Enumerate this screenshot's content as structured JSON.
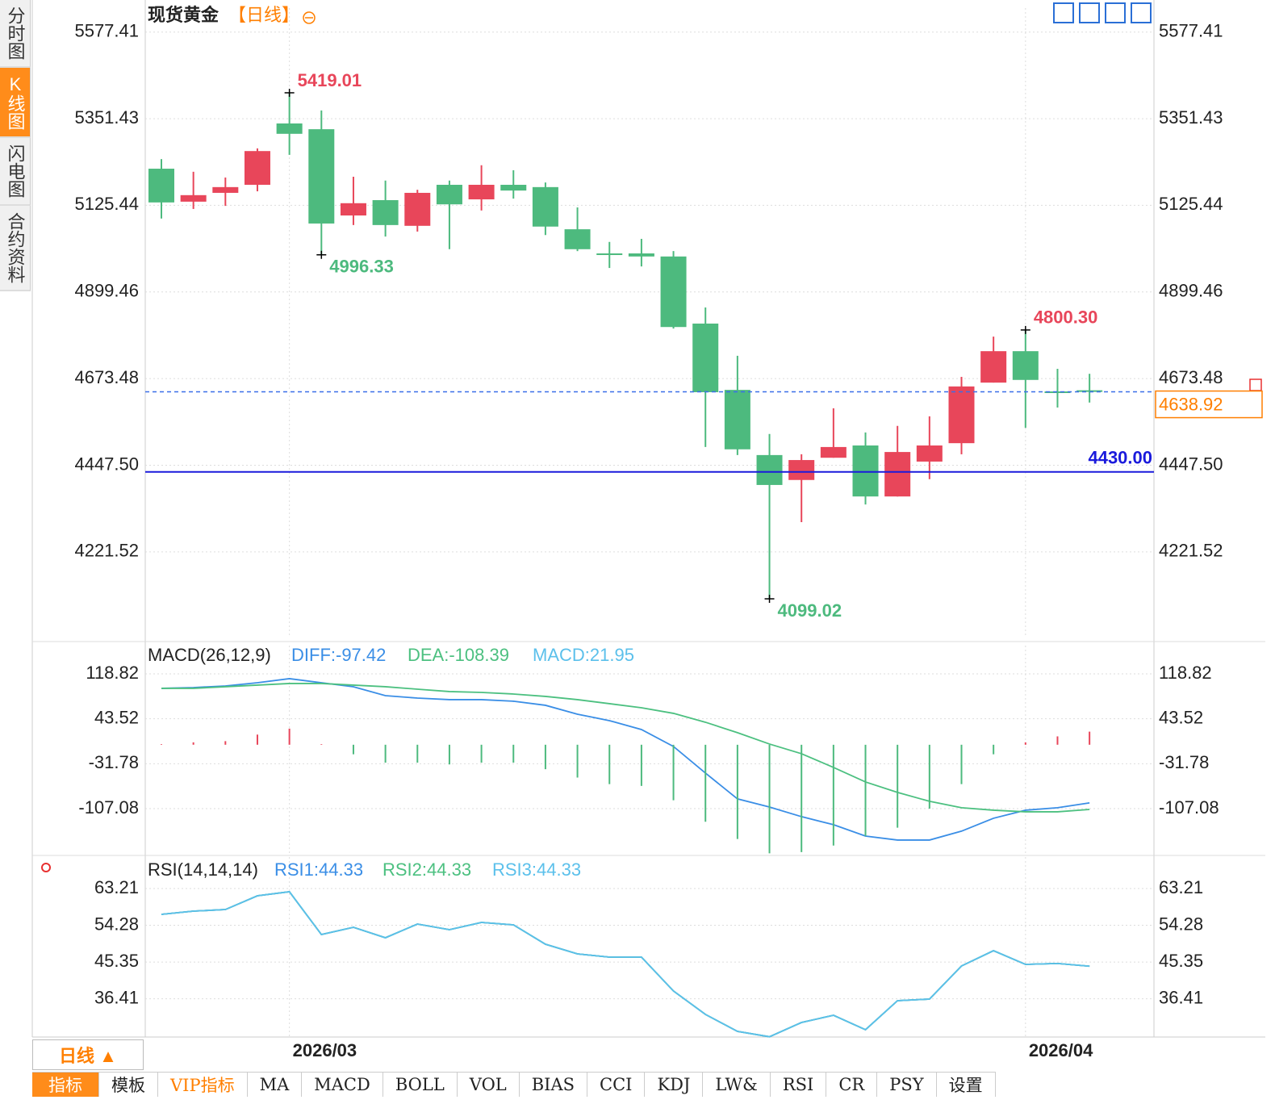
{
  "sidebar_tabs": [
    "分时图",
    "K线图",
    "闪电图",
    "合约资料"
  ],
  "period_button": "日线 ▲",
  "toolbar_tabs": [
    "指标",
    "模板",
    "VIP指标",
    "MA",
    "MACD",
    "BOLL",
    "VOL",
    "BIAS",
    "CCI",
    "KDJ",
    "LW&",
    "RSI",
    "CR",
    "PSY",
    "设置"
  ],
  "chart_data": [
    {
      "type": "candlestick",
      "title": "现货黄金",
      "subtitle": "【日线】",
      "categories": [
        null,
        null,
        null,
        null,
        "2026/03",
        null,
        null,
        null,
        null,
        null,
        null,
        null,
        null,
        null,
        null,
        null,
        null,
        null,
        null,
        null,
        null,
        null,
        null,
        null,
        null,
        null,
        null,
        "2026/04",
        null,
        null
      ],
      "open": [
        5221,
        5135,
        5158,
        5179,
        5339,
        5324,
        5099,
        5139,
        5072,
        5179,
        5141,
        5179,
        5173,
        5063,
        5000,
        5000,
        4992,
        4817,
        4644,
        4474,
        4409,
        4467,
        4499,
        4366,
        4457,
        4505,
        4663,
        4745,
        4640,
        4643
      ],
      "high": [
        5246,
        5213,
        5198,
        5274,
        5419.01,
        5373,
        5200,
        5190,
        5166,
        5190,
        5230,
        5217,
        5185,
        5120,
        5030,
        5038,
        5006,
        4859,
        4733,
        4529,
        4476,
        4596,
        4533,
        4550,
        4575,
        4678,
        4783,
        4800.3,
        4699,
        4686
      ],
      "low": [
        5091,
        5116,
        5124,
        5162,
        5257,
        4996.33,
        5074,
        5044,
        5057,
        5011,
        5112,
        5143,
        5048,
        5006,
        4962,
        4966,
        4804,
        4495,
        4474,
        4099.02,
        4299,
        4467,
        4345,
        4366,
        4411,
        4476,
        4663,
        4545,
        4598,
        4611
      ],
      "close": [
        5133,
        5152,
        5173,
        5267,
        5312,
        5078,
        5131,
        5074,
        5158,
        5128,
        5179,
        5164,
        5070,
        5011,
        4996,
        4992,
        4808,
        4638,
        4489,
        4396,
        4461,
        4495,
        4366,
        4482,
        4499,
        4653,
        4745,
        4670,
        4636,
        4638.92
      ],
      "up_color": "#e8465a",
      "down_color": "#4dba7e",
      "annotations": [
        5419.01,
        4996.33,
        4099.02,
        {
          "value": 4800.3,
          "label": "4800.30"
        }
      ],
      "last_price": 4638.92,
      "support_line": {
        "value": 4430,
        "label": "4430.00"
      },
      "ylim": [
        3998,
        5640
      ],
      "yticks": [
        5577.41,
        5351.43,
        5125.44,
        4899.46,
        4673.48,
        {
          "value": 4447.5,
          "label": "4447.50"
        },
        4221.52
      ],
      "grid": true
    },
    {
      "type": "line",
      "title": "MACD(26,12,9)",
      "series": [
        {
          "name": "DIFF:-97.42",
          "color": "#3a8ee6",
          "values": [
            94.5,
            95.8,
            98.5,
            103.9,
            110.7,
            103.9,
            97.2,
            82.3,
            78.2,
            75.6,
            75.6,
            72.9,
            66.1,
            51.2,
            40.4,
            25.5,
            -2.9,
            -47.5,
            -90.7,
            -104.3,
            -120.5,
            -134.0,
            -153.0,
            -159.7,
            -159.7,
            -144.8,
            -123.2,
            -109.7,
            -105.6,
            -97.42
          ]
        },
        {
          "name": "DEA:-108.39",
          "color": "#4cc080",
          "values": [
            94.5,
            94.5,
            97.2,
            99.9,
            102.6,
            102.6,
            99.9,
            97.2,
            93.1,
            89.1,
            87.7,
            85.0,
            81.0,
            75.6,
            68.8,
            62.0,
            52.6,
            37.7,
            20.2,
            1.2,
            -15.0,
            -38.0,
            -62.4,
            -79.9,
            -94.8,
            -105.6,
            -109.7,
            -112.4,
            -112.4,
            -108.39
          ]
        },
        {
          "name": "MACD:21.95",
          "color": "#5bc0eb",
          "type": "bar",
          "up_color": "#e8465a",
          "down_color": "#4dba7e",
          "values": [
            1,
            4,
            6,
            17,
            27,
            1,
            -16,
            -30,
            -30,
            -33,
            -30,
            -30,
            -41,
            -55,
            -66,
            -69,
            -93,
            -129,
            -158,
            -182,
            -180,
            -169,
            -153,
            -139,
            -107,
            -66,
            -16,
            4,
            14,
            21.95
          ]
        }
      ],
      "ylim": [
        -182.8,
        166.1
      ],
      "yticks": [
        118.82,
        43.52,
        -31.78,
        -107.08
      ]
    },
    {
      "type": "line",
      "title": "RSI(14,14,14)",
      "series": [
        {
          "name": "RSI1:44.33",
          "color": "#3a8ee6",
          "values": [
            56.94,
            57.72,
            58.11,
            61.45,
            62.43,
            52.03,
            53.8,
            51.25,
            54.58,
            53.21,
            54.97,
            54.39,
            49.68,
            47.33,
            46.54,
            46.54,
            38.31,
            32.62,
            28.5,
            27.2,
            30.66,
            32.42,
            28.9,
            35.96,
            36.35,
            44.39,
            48.11,
            44.78,
            45.0,
            44.33
          ]
        },
        {
          "name": "RSI2:44.33",
          "color": "#4cc080",
          "values": [
            56.94,
            57.72,
            58.11,
            61.45,
            62.43,
            52.03,
            53.8,
            51.25,
            54.58,
            53.21,
            54.97,
            54.39,
            49.68,
            47.33,
            46.54,
            46.54,
            38.31,
            32.62,
            28.5,
            27.2,
            30.66,
            32.42,
            28.9,
            35.96,
            36.35,
            44.39,
            48.11,
            44.78,
            45.0,
            44.33
          ]
        },
        {
          "name": "RSI3:44.33",
          "color": "#5bc0eb",
          "values": [
            56.94,
            57.72,
            58.11,
            61.45,
            62.43,
            52.03,
            53.8,
            51.25,
            54.58,
            53.21,
            54.97,
            54.39,
            49.68,
            47.33,
            46.54,
            46.54,
            38.31,
            32.62,
            28.5,
            27.2,
            30.66,
            32.42,
            28.9,
            35.96,
            36.35,
            44.39,
            48.11,
            44.78,
            45.0,
            44.33
          ]
        }
      ],
      "ylim": [
        27.13,
        70.86
      ],
      "yticks": [
        63.21,
        54.28,
        45.35,
        36.41
      ]
    }
  ]
}
